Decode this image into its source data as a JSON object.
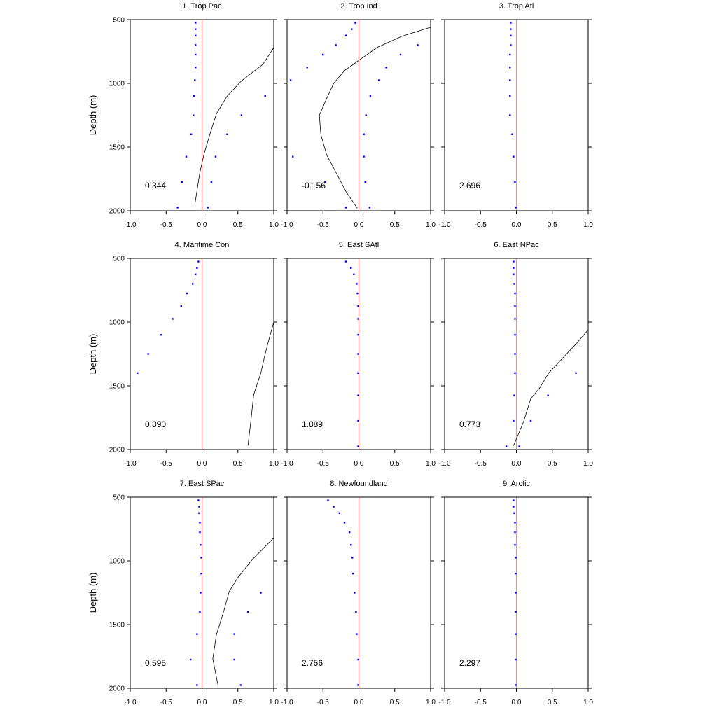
{
  "chart_data": {
    "type": "line",
    "ylabel": "Depth (m)",
    "xlim": [
      -1.0,
      1.0
    ],
    "ylim": [
      2000,
      500
    ],
    "y_inverted": true,
    "xticks": [
      "-1.0",
      "-0.5",
      "0.0",
      "0.5",
      "1.0"
    ],
    "yticks": [
      "500",
      "1000",
      "1500",
      "2000"
    ],
    "zero_line_color": "#ff9090",
    "dot_color": "#0000ff",
    "line_color": "#000000",
    "depths": [
      525,
      575,
      625,
      700,
      775,
      875,
      975,
      1100,
      1250,
      1400,
      1575,
      1775,
      1975
    ],
    "panels": [
      {
        "title": "1. Trop Pac",
        "stat": "0.344",
        "dots_left": [
          -0.09,
          -0.09,
          -0.09,
          -0.09,
          -0.09,
          -0.09,
          -0.1,
          -0.11,
          -0.12,
          -0.15,
          -0.22,
          -0.28,
          -0.34
        ],
        "dots_right": [
          null,
          null,
          null,
          null,
          null,
          null,
          null,
          0.88,
          0.55,
          0.35,
          0.19,
          0.13,
          0.08
        ],
        "line": [
          [
            1.0,
            720
          ],
          [
            0.85,
            850
          ],
          [
            0.55,
            980
          ],
          [
            0.35,
            1100
          ],
          [
            0.2,
            1240
          ],
          [
            0.12,
            1380
          ],
          [
            0.03,
            1550
          ],
          [
            -0.03,
            1700
          ],
          [
            -0.1,
            1950
          ]
        ]
      },
      {
        "title": "2. Trop Ind",
        "stat": "-0.156",
        "dots_left": [
          -0.05,
          -0.1,
          -0.18,
          -0.32,
          -0.5,
          -0.72,
          -0.95,
          null,
          null,
          null,
          -0.92,
          -0.47,
          -0.18
        ],
        "dots_right": [
          null,
          null,
          null,
          0.82,
          0.58,
          0.38,
          0.28,
          0.16,
          0.1,
          0.07,
          0.07,
          0.09,
          0.15
        ],
        "line": [
          [
            1.0,
            560
          ],
          [
            0.6,
            630
          ],
          [
            0.25,
            720
          ],
          [
            0.05,
            800
          ],
          [
            -0.2,
            900
          ],
          [
            -0.35,
            1000
          ],
          [
            -0.45,
            1120
          ],
          [
            -0.55,
            1250
          ],
          [
            -0.53,
            1400
          ],
          [
            -0.45,
            1560
          ],
          [
            -0.3,
            1720
          ],
          [
            -0.18,
            1850
          ],
          [
            -0.02,
            1980
          ]
        ]
      },
      {
        "title": "3. Trop Atl",
        "stat": "2.696",
        "dots_left": [
          -0.08,
          -0.08,
          -0.08,
          -0.08,
          -0.09,
          -0.09,
          -0.09,
          -0.09,
          -0.09,
          -0.06,
          -0.04,
          -0.02,
          -0.01
        ],
        "dots_right": [],
        "line": []
      },
      {
        "title": "4. Maritime Con",
        "stat": "0.890",
        "dots_left": [
          -0.05,
          -0.07,
          -0.09,
          -0.13,
          -0.21,
          -0.29,
          -0.41,
          -0.57,
          -0.75,
          -0.9,
          null,
          null,
          null
        ],
        "dots_right": [],
        "line": [
          [
            1.0,
            1000
          ],
          [
            0.94,
            1120
          ],
          [
            0.88,
            1250
          ],
          [
            0.82,
            1400
          ],
          [
            0.72,
            1570
          ],
          [
            0.68,
            1780
          ],
          [
            0.64,
            1970
          ]
        ]
      },
      {
        "title": "5. East SAtl",
        "stat": "1.889",
        "dots_left": [
          -0.18,
          -0.11,
          -0.07,
          -0.03,
          -0.02,
          -0.01,
          -0.01,
          -0.01,
          -0.01,
          -0.01,
          -0.01,
          -0.01,
          -0.01
        ],
        "dots_right": [],
        "line": []
      },
      {
        "title": "6. East NPac",
        "stat": "0.773",
        "dots_left": [
          -0.04,
          -0.04,
          -0.04,
          -0.03,
          -0.02,
          -0.02,
          -0.02,
          -0.02,
          -0.02,
          -0.02,
          -0.03,
          -0.04,
          -0.14
        ],
        "dots_right": [
          null,
          null,
          null,
          null,
          null,
          null,
          null,
          null,
          null,
          0.83,
          0.44,
          0.2,
          0.04
        ],
        "line": [
          [
            1.0,
            1060
          ],
          [
            0.85,
            1160
          ],
          [
            0.65,
            1280
          ],
          [
            0.45,
            1400
          ],
          [
            0.32,
            1520
          ],
          [
            0.2,
            1600
          ],
          [
            0.1,
            1780
          ],
          [
            -0.04,
            1970
          ]
        ]
      },
      {
        "title": "7. East SPac",
        "stat": "0.595",
        "dots_left": [
          -0.05,
          -0.04,
          -0.04,
          -0.03,
          -0.03,
          -0.02,
          -0.01,
          -0.01,
          -0.02,
          -0.03,
          -0.07,
          -0.16,
          -0.07
        ],
        "dots_right": [
          null,
          null,
          null,
          null,
          null,
          null,
          null,
          null,
          0.82,
          0.64,
          0.45,
          0.45,
          0.54
        ],
        "line": [
          [
            1.0,
            820
          ],
          [
            0.7,
            990
          ],
          [
            0.5,
            1130
          ],
          [
            0.38,
            1240
          ],
          [
            0.3,
            1400
          ],
          [
            0.2,
            1580
          ],
          [
            0.15,
            1770
          ],
          [
            0.22,
            1970
          ]
        ]
      },
      {
        "title": "8. Newfoundland",
        "stat": "2.756",
        "dots_left": [
          -0.43,
          -0.35,
          -0.27,
          -0.2,
          -0.13,
          -0.11,
          -0.09,
          -0.08,
          -0.06,
          -0.04,
          -0.03,
          -0.01,
          -0.01
        ],
        "dots_right": [],
        "line": []
      },
      {
        "title": "9. Arctic",
        "stat": "2.297",
        "dots_left": [
          -0.04,
          -0.04,
          -0.03,
          -0.02,
          -0.02,
          -0.02,
          -0.01,
          -0.01,
          -0.01,
          -0.01,
          -0.01,
          -0.01,
          -0.01
        ],
        "dots_right": [],
        "line": []
      }
    ]
  }
}
